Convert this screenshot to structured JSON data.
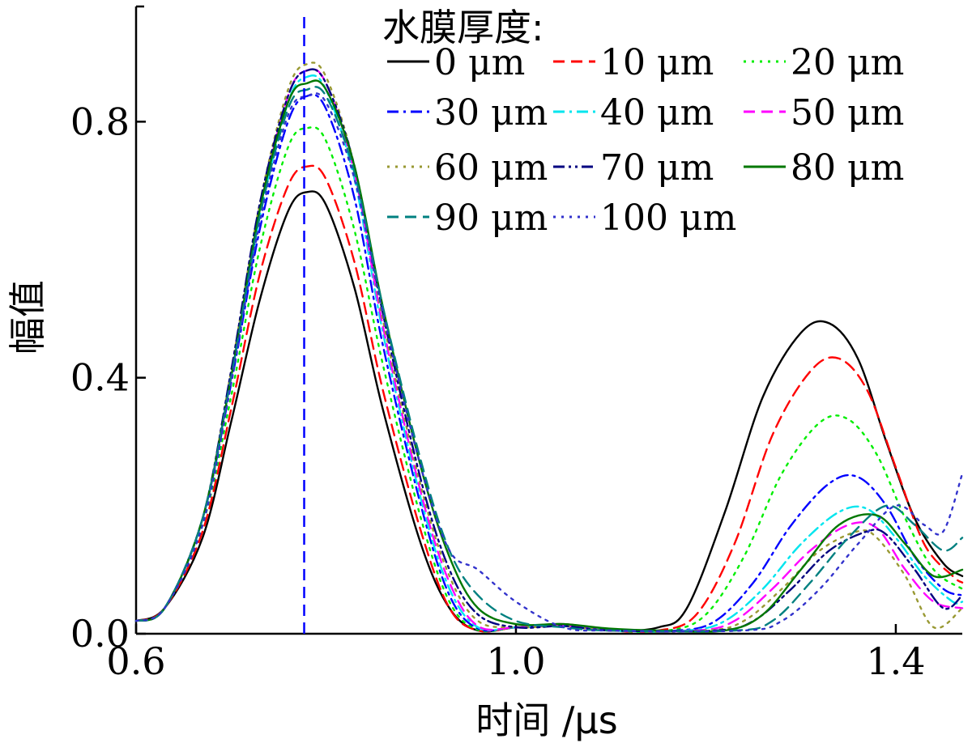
{
  "chart_data": {
    "type": "line",
    "xlabel": "时间 /μs",
    "ylabel": "幅值",
    "xlim": [
      0.6,
      1.47
    ],
    "ylim": [
      0.0,
      0.98
    ],
    "xticks": [
      0.6,
      1.0,
      1.4
    ],
    "xtick_labels": [
      "0.6",
      "1.0",
      "1.4"
    ],
    "yticks": [
      0.0,
      0.4,
      0.8
    ],
    "ytick_labels": [
      "0.0",
      "0.4",
      "0.8"
    ],
    "grid": false,
    "legend": {
      "title": "水膜厚度:",
      "placement": "top-right",
      "columns": 3
    },
    "reference_line": {
      "x": 0.777,
      "color": "#0000ff",
      "style": "dashed"
    },
    "series": [
      {
        "name": "0 μm",
        "color": "#000000",
        "dash": "solid",
        "x": [
          0.6,
          0.63,
          0.67,
          0.7,
          0.73,
          0.76,
          0.78,
          0.8,
          0.83,
          0.86,
          0.9,
          0.93,
          0.96,
          1.0,
          1.05,
          1.1,
          1.15,
          1.18,
          1.22,
          1.26,
          1.3,
          1.33,
          1.36,
          1.39,
          1.42,
          1.45,
          1.47
        ],
        "y": [
          0.02,
          0.04,
          0.15,
          0.33,
          0.52,
          0.66,
          0.69,
          0.67,
          0.54,
          0.35,
          0.14,
          0.04,
          0.005,
          0.01,
          0.015,
          0.005,
          0.01,
          0.04,
          0.19,
          0.37,
          0.47,
          0.485,
          0.43,
          0.3,
          0.18,
          0.11,
          0.09
        ]
      },
      {
        "name": "10 μm",
        "color": "#ff0000",
        "dash": "dashed",
        "x": [
          0.6,
          0.63,
          0.67,
          0.7,
          0.73,
          0.76,
          0.78,
          0.8,
          0.83,
          0.86,
          0.9,
          0.93,
          0.96,
          1.0,
          1.05,
          1.1,
          1.15,
          1.19,
          1.23,
          1.27,
          1.31,
          1.34,
          1.37,
          1.4,
          1.43,
          1.46,
          1.47
        ],
        "y": [
          0.02,
          0.04,
          0.16,
          0.35,
          0.56,
          0.7,
          0.73,
          0.71,
          0.58,
          0.38,
          0.16,
          0.04,
          0.005,
          0.01,
          0.015,
          0.005,
          0.005,
          0.03,
          0.14,
          0.31,
          0.41,
          0.43,
          0.38,
          0.26,
          0.14,
          0.09,
          0.08
        ]
      },
      {
        "name": "20 μm",
        "color": "#00ee00",
        "dash": "dotted",
        "x": [
          0.6,
          0.63,
          0.67,
          0.7,
          0.73,
          0.76,
          0.78,
          0.8,
          0.83,
          0.86,
          0.9,
          0.93,
          0.96,
          1.0,
          1.05,
          1.1,
          1.16,
          1.2,
          1.24,
          1.28,
          1.32,
          1.35,
          1.38,
          1.41,
          1.44,
          1.47
        ],
        "y": [
          0.02,
          0.04,
          0.17,
          0.37,
          0.6,
          0.76,
          0.79,
          0.77,
          0.63,
          0.42,
          0.18,
          0.05,
          0.006,
          0.01,
          0.015,
          0.005,
          0.005,
          0.03,
          0.12,
          0.25,
          0.33,
          0.335,
          0.28,
          0.18,
          0.1,
          0.07
        ]
      },
      {
        "name": "30 μm",
        "color": "#0000ff",
        "dash": "dashdot",
        "x": [
          0.6,
          0.63,
          0.67,
          0.7,
          0.73,
          0.76,
          0.78,
          0.8,
          0.83,
          0.86,
          0.9,
          0.93,
          0.96,
          1.0,
          1.05,
          1.1,
          1.17,
          1.21,
          1.25,
          1.29,
          1.33,
          1.36,
          1.39,
          1.42,
          1.45,
          1.47
        ],
        "y": [
          0.02,
          0.04,
          0.18,
          0.39,
          0.63,
          0.8,
          0.84,
          0.82,
          0.68,
          0.45,
          0.2,
          0.06,
          0.008,
          0.01,
          0.012,
          0.005,
          0.005,
          0.02,
          0.08,
          0.17,
          0.235,
          0.245,
          0.2,
          0.12,
          0.07,
          0.06
        ]
      },
      {
        "name": "40 μm",
        "color": "#00e5ee",
        "dash": "dashdot",
        "x": [
          0.6,
          0.63,
          0.67,
          0.7,
          0.73,
          0.76,
          0.78,
          0.8,
          0.83,
          0.86,
          0.9,
          0.93,
          0.96,
          1.0,
          1.05,
          1.1,
          1.18,
          1.22,
          1.26,
          1.3,
          1.34,
          1.37,
          1.4,
          1.43,
          1.46,
          1.47
        ],
        "y": [
          0.02,
          0.04,
          0.18,
          0.4,
          0.65,
          0.83,
          0.87,
          0.85,
          0.71,
          0.47,
          0.21,
          0.07,
          0.01,
          0.01,
          0.012,
          0.005,
          0.005,
          0.02,
          0.07,
          0.14,
          0.19,
          0.195,
          0.15,
          0.09,
          0.05,
          0.05
        ]
      },
      {
        "name": "50 μm",
        "color": "#ff00ff",
        "dash": "dashed",
        "x": [
          0.6,
          0.63,
          0.67,
          0.7,
          0.73,
          0.76,
          0.78,
          0.8,
          0.83,
          0.86,
          0.9,
          0.93,
          0.96,
          1.0,
          1.05,
          1.1,
          1.19,
          1.23,
          1.27,
          1.31,
          1.35,
          1.38,
          1.41,
          1.44,
          1.47
        ],
        "y": [
          0.02,
          0.04,
          0.18,
          0.4,
          0.66,
          0.84,
          0.88,
          0.86,
          0.72,
          0.48,
          0.22,
          0.08,
          0.012,
          0.01,
          0.012,
          0.005,
          0.005,
          0.02,
          0.07,
          0.13,
          0.17,
          0.165,
          0.1,
          0.05,
          0.04
        ]
      },
      {
        "name": "60 μm",
        "color": "#999933",
        "dash": "dotted",
        "x": [
          0.6,
          0.63,
          0.67,
          0.7,
          0.73,
          0.76,
          0.78,
          0.8,
          0.83,
          0.86,
          0.9,
          0.93,
          0.96,
          1.0,
          1.05,
          1.1,
          1.2,
          1.24,
          1.28,
          1.32,
          1.36,
          1.38,
          1.41,
          1.44,
          1.47
        ],
        "y": [
          0.02,
          0.04,
          0.18,
          0.41,
          0.67,
          0.85,
          0.89,
          0.87,
          0.73,
          0.49,
          0.23,
          0.09,
          0.02,
          0.01,
          0.012,
          0.005,
          0.005,
          0.02,
          0.07,
          0.13,
          0.16,
          0.15,
          0.09,
          0.01,
          0.04
        ]
      },
      {
        "name": "70 μm",
        "color": "#000080",
        "dash": "dashdotdot",
        "x": [
          0.6,
          0.63,
          0.67,
          0.7,
          0.73,
          0.76,
          0.78,
          0.8,
          0.83,
          0.86,
          0.9,
          0.93,
          0.96,
          1.0,
          1.05,
          1.1,
          1.21,
          1.25,
          1.29,
          1.33,
          1.37,
          1.39,
          1.42,
          1.45,
          1.47
        ],
        "y": [
          0.02,
          0.04,
          0.18,
          0.41,
          0.67,
          0.84,
          0.88,
          0.86,
          0.73,
          0.5,
          0.24,
          0.1,
          0.03,
          0.01,
          0.012,
          0.005,
          0.005,
          0.02,
          0.07,
          0.13,
          0.16,
          0.155,
          0.1,
          0.04,
          0.06
        ]
      },
      {
        "name": "80 μm",
        "color": "#007700",
        "dash": "solid",
        "x": [
          0.6,
          0.63,
          0.67,
          0.7,
          0.73,
          0.76,
          0.78,
          0.8,
          0.83,
          0.86,
          0.9,
          0.93,
          0.96,
          1.0,
          1.05,
          1.1,
          1.15,
          1.22,
          1.26,
          1.3,
          1.34,
          1.38,
          1.41,
          1.44,
          1.47
        ],
        "y": [
          0.02,
          0.04,
          0.18,
          0.4,
          0.66,
          0.83,
          0.86,
          0.85,
          0.73,
          0.51,
          0.26,
          0.12,
          0.04,
          0.015,
          0.015,
          0.008,
          0.005,
          0.005,
          0.03,
          0.1,
          0.17,
          0.185,
          0.14,
          0.09,
          0.1
        ]
      },
      {
        "name": "90 μm",
        "color": "#008080",
        "dash": "dashed",
        "x": [
          0.6,
          0.63,
          0.67,
          0.7,
          0.73,
          0.76,
          0.78,
          0.8,
          0.83,
          0.86,
          0.9,
          0.93,
          0.96,
          1.0,
          1.05,
          1.1,
          1.23,
          1.27,
          1.31,
          1.35,
          1.39,
          1.42,
          1.45,
          1.47
        ],
        "y": [
          0.02,
          0.04,
          0.18,
          0.4,
          0.65,
          0.82,
          0.85,
          0.84,
          0.72,
          0.51,
          0.27,
          0.13,
          0.06,
          0.02,
          0.01,
          0.005,
          0.005,
          0.02,
          0.08,
          0.15,
          0.2,
          0.17,
          0.13,
          0.15
        ]
      },
      {
        "name": "100 μm",
        "color": "#3333cc",
        "dash": "dotted",
        "x": [
          0.6,
          0.63,
          0.67,
          0.7,
          0.73,
          0.76,
          0.78,
          0.8,
          0.83,
          0.86,
          0.9,
          0.93,
          0.96,
          1.0,
          1.05,
          1.1,
          1.24,
          1.28,
          1.32,
          1.36,
          1.4,
          1.43,
          1.45,
          1.47
        ],
        "y": [
          0.02,
          0.04,
          0.17,
          0.39,
          0.64,
          0.81,
          0.84,
          0.83,
          0.71,
          0.5,
          0.26,
          0.13,
          0.1,
          0.05,
          0.01,
          0.005,
          0.005,
          0.02,
          0.07,
          0.14,
          0.2,
          0.17,
          0.16,
          0.25
        ]
      }
    ]
  }
}
